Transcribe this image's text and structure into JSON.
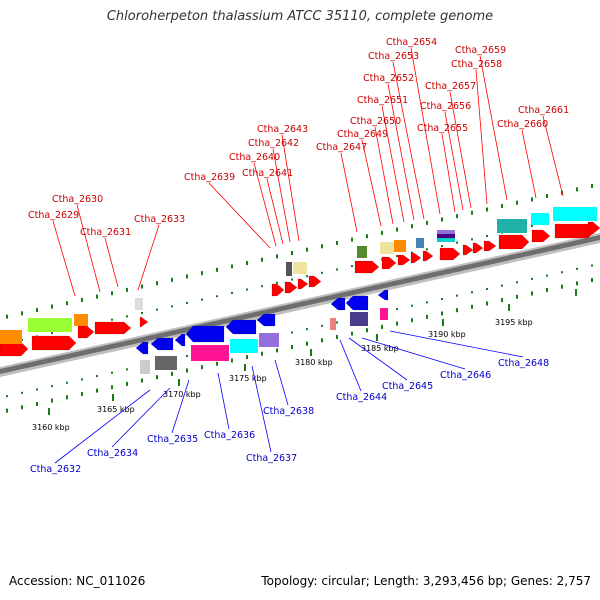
{
  "title": "Chloroherpeton thalassium ATCC 35110, complete genome",
  "footer": {
    "accession": "Accession: NC_011026",
    "summary": "Topology: circular; Length: 3,293,456 bp; Genes: 2,757"
  },
  "colors": {
    "forward_label": "#cc0000",
    "reverse_label": "#0000cc",
    "backbone": "#666666",
    "ticks": "#1a7a1a"
  },
  "tick_labels": [
    "3160 kbp",
    "3165 kbp",
    "3170 kbp",
    "3175 kbp",
    "3180 kbp",
    "3185 kbp",
    "3190 kbp",
    "3195 kbp"
  ],
  "forward_genes": [
    "Ctha_2629",
    "Ctha_2630",
    "Ctha_2631",
    "Ctha_2633",
    "Ctha_2639",
    "Ctha_2640",
    "Ctha_2641",
    "Ctha_2642",
    "Ctha_2643",
    "Ctha_2647",
    "Ctha_2649",
    "Ctha_2650",
    "Ctha_2651",
    "Ctha_2652",
    "Ctha_2653",
    "Ctha_2654",
    "Ctha_2655",
    "Ctha_2656",
    "Ctha_2657",
    "Ctha_2658",
    "Ctha_2659",
    "Ctha_2660",
    "Ctha_2661"
  ],
  "reverse_genes": [
    "Ctha_2632",
    "Ctha_2634",
    "Ctha_2635",
    "Ctha_2636",
    "Ctha_2637",
    "Ctha_2638",
    "Ctha_2644",
    "Ctha_2645",
    "Ctha_2646",
    "Ctha_2648"
  ]
}
